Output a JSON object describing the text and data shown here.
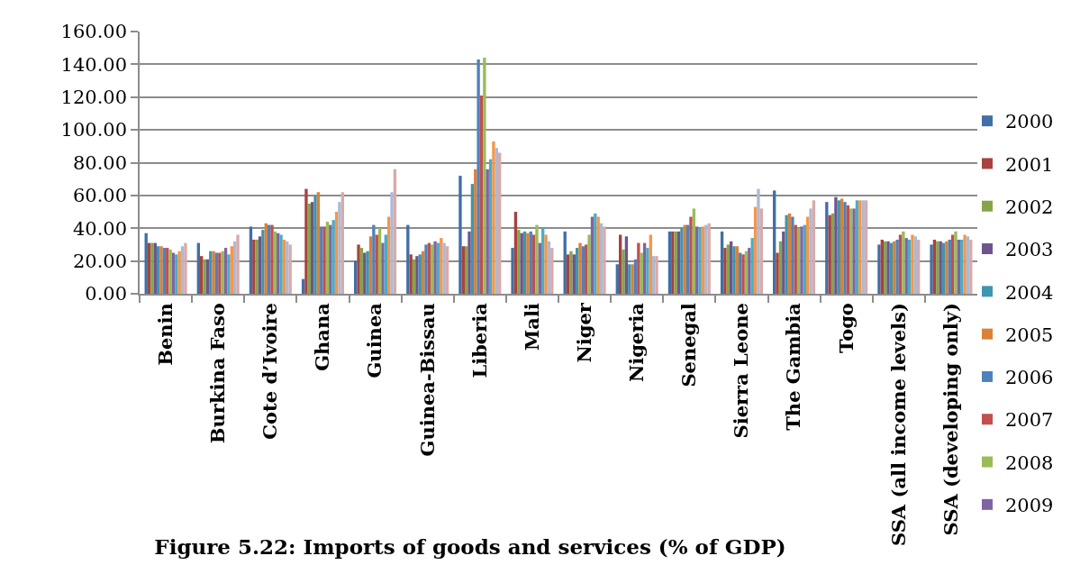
{
  "chart_data": {
    "type": "bar",
    "title": "Figure 5.22: Imports of goods and services (% of GDP)",
    "categories": [
      "Benin",
      "Burkina Faso",
      "Cote d’Ivoire",
      "Ghana",
      "Guinea",
      "Guinea-Bissau",
      "Liberia",
      "Mali",
      "Niger",
      "Nigeria",
      "Senegal",
      "Sierra Leone",
      "The Gambia",
      "Togo",
      "SSA (all income levels)",
      "SSA (developing only)"
    ],
    "series": [
      {
        "name": "2000",
        "color": "#416fa6",
        "values": [
          37,
          31,
          41,
          9,
          20,
          42,
          72,
          28,
          38,
          18,
          38,
          38,
          63,
          56,
          30,
          30
        ]
      },
      {
        "name": "2001",
        "color": "#a8423f",
        "values": [
          31,
          23,
          33,
          64,
          30,
          24,
          29,
          50,
          24,
          36,
          38,
          28,
          25,
          48,
          33,
          33
        ]
      },
      {
        "name": "2002",
        "color": "#86a44a",
        "values": [
          31,
          21,
          33,
          55,
          28,
          21,
          29,
          39,
          26,
          27,
          38,
          30,
          32,
          49,
          32,
          32
        ]
      },
      {
        "name": "2003",
        "color": "#6e548d",
        "values": [
          31,
          21,
          35,
          56,
          25,
          23,
          38,
          37,
          24,
          35,
          38,
          32,
          38,
          59,
          32,
          32
        ]
      },
      {
        "name": "2004",
        "color": "#3d96ae",
        "values": [
          29,
          26,
          39,
          60,
          26,
          24,
          67,
          38,
          28,
          18,
          40,
          29,
          48,
          57,
          31,
          31
        ]
      },
      {
        "name": "2005",
        "color": "#da8137",
        "values": [
          29,
          26,
          43,
          62,
          35,
          26,
          76,
          37,
          31,
          18,
          42,
          29,
          49,
          58,
          32,
          32
        ]
      },
      {
        "name": "2006",
        "color": "#4f81bd",
        "values": [
          28,
          25,
          42,
          41,
          42,
          30,
          143,
          38,
          29,
          21,
          42,
          25,
          47,
          56,
          33,
          33
        ]
      },
      {
        "name": "2007",
        "color": "#c0504d",
        "values": [
          28,
          25,
          42,
          41,
          36,
          31,
          121,
          36,
          30,
          31,
          47,
          24,
          42,
          54,
          36,
          36
        ]
      },
      {
        "name": "2008",
        "color": "#9bbb59",
        "values": [
          27,
          26,
          38,
          44,
          40,
          30,
          144,
          42,
          36,
          25,
          52,
          26,
          40,
          52,
          38,
          38
        ]
      },
      {
        "name": "2009",
        "color": "#8064a2",
        "values": [
          25,
          28,
          37,
          42,
          31,
          32,
          76,
          31,
          47,
          31,
          41,
          28,
          41,
          52,
          34,
          33
        ]
      },
      {
        "color": "#4bacc6",
        "values": [
          24,
          24,
          36,
          45,
          36,
          31,
          82,
          40,
          49,
          28,
          40,
          34,
          42,
          57,
          33,
          33
        ]
      },
      {
        "color": "#f79646",
        "values": [
          26,
          29,
          33,
          50,
          47,
          34,
          93,
          36,
          47,
          36,
          41,
          53,
          47,
          57,
          36,
          36
        ]
      },
      {
        "color": "#aabad7",
        "values": [
          29,
          32,
          32,
          56,
          62,
          31,
          89,
          32,
          43,
          23,
          42,
          64,
          52,
          57,
          35,
          35
        ]
      },
      {
        "color": "#d9aaa9",
        "values": [
          31,
          36,
          30,
          62,
          76,
          29,
          86,
          28,
          41,
          23,
          43,
          52,
          57,
          57,
          33,
          33
        ]
      }
    ],
    "ylim": [
      0,
      160
    ],
    "yticks": [
      {
        "value": 0,
        "label": "0.00"
      },
      {
        "value": 20,
        "label": "20.00"
      },
      {
        "value": 40,
        "label": "40.00"
      },
      {
        "value": 60,
        "label": "60.00"
      },
      {
        "value": 80,
        "label": "80.00"
      },
      {
        "value": 100,
        "label": "100.00"
      },
      {
        "value": 120,
        "label": "120.00"
      },
      {
        "value": 140,
        "label": "140.00"
      },
      {
        "value": 160,
        "label": "160.00"
      }
    ],
    "grid": "y",
    "legend": "right"
  }
}
